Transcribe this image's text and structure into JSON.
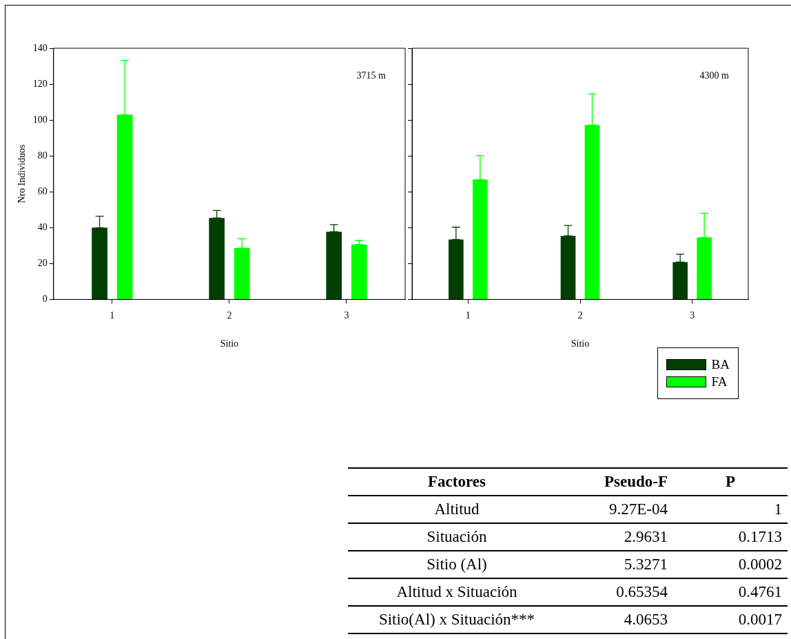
{
  "chart_data": [
    {
      "type": "bar",
      "ylabel": "Nro Individuos",
      "xlabel": "Sitio",
      "annotations": [
        "3715 m"
      ],
      "categories": [
        "1",
        "2",
        "3"
      ],
      "ylim": [
        0,
        140
      ],
      "yticks": [
        0,
        20,
        40,
        60,
        80,
        100,
        120,
        140
      ],
      "grid": false,
      "series": [
        {
          "color": "#003f00",
          "values": [
            40.0,
            45.4,
            37.7
          ],
          "errors": [
            [
              40.0,
              46.4
            ],
            [
              45.4,
              49.6
            ],
            [
              37.7,
              41.7
            ]
          ]
        },
        {
          "color": "#00ff00",
          "values": [
            102.9,
            28.6,
            30.6
          ],
          "errors": [
            [
              102.9,
              133.2
            ],
            [
              28.6,
              33.8
            ],
            [
              30.6,
              32.9
            ]
          ]
        }
      ]
    },
    {
      "type": "bar",
      "xlabel": "Sitio",
      "annotations": [
        "4300 m"
      ],
      "categories": [
        "1",
        "2",
        "3"
      ],
      "ylim": [
        0,
        140
      ],
      "yticks": [
        0,
        20,
        40,
        60,
        80,
        100,
        120,
        140
      ],
      "tick_labels": "x",
      "grid": false,
      "legend": "bottom right",
      "series": [
        {
          "name": "BA",
          "color": "#003f00",
          "values": [
            33.4,
            35.4,
            20.8
          ],
          "errors": [
            [
              33.4,
              40.3
            ],
            [
              35.4,
              41.2
            ],
            [
              20.8,
              25.3
            ]
          ]
        },
        {
          "name": "FA",
          "color": "#00ff00",
          "values": [
            66.8,
            97.2,
            34.5
          ],
          "errors": [
            [
              66.8,
              80.1
            ],
            [
              97.2,
              114.5
            ],
            [
              34.5,
              48.0
            ]
          ]
        }
      ]
    },
    {
      "type": "other",
      "categories": [
        "Factores",
        "Pseudo-F",
        "P"
      ],
      "y_categories": [
        "Altitud",
        "Situación",
        "Sitio (Al)",
        "Altitud x  Situación",
        "Sitio(Al) x Situación***"
      ],
      "cell_labels": [
        [
          "9.27E-04",
          "1"
        ],
        [
          "2.9631",
          "0.1713"
        ],
        [
          "5.3271",
          "0.0002"
        ],
        [
          "0.65354",
          "0.4761"
        ],
        [
          "4.0653",
          "0.0017"
        ]
      ]
    }
  ]
}
